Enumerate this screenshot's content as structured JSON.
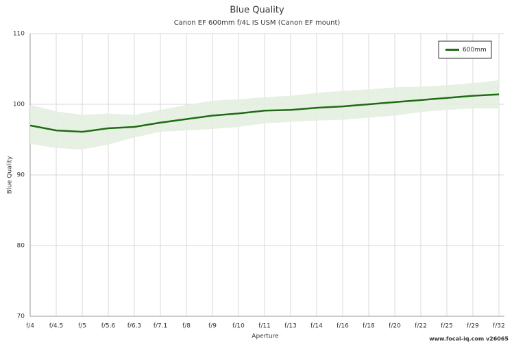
{
  "chart_data": {
    "type": "line",
    "title": "Blue Quality",
    "subtitle": "Canon EF 600mm f/4L IS USM (Canon EF mount)",
    "x_label": "Aperture",
    "y_label": "Blue Quality",
    "footer": "www.focal-iq.com  v26065",
    "categories": [
      "f/4",
      "f/4.5",
      "f/5",
      "f/5.6",
      "f/6.3",
      "f/7.1",
      "f/8",
      "f/9",
      "f/10",
      "f/11",
      "f/13",
      "f/14",
      "f/16",
      "f/18",
      "f/20",
      "f/22",
      "f/25",
      "f/29",
      "f/32"
    ],
    "series": [
      {
        "name": "600mm",
        "color": "#1e6b12",
        "values": [
          97.0,
          96.3,
          96.1,
          96.6,
          96.8,
          97.4,
          97.9,
          98.4,
          98.7,
          99.1,
          99.2,
          99.5,
          99.7,
          100.0,
          100.3,
          100.6,
          100.9,
          101.2,
          101.4
        ],
        "band_upper": [
          99.9,
          99.0,
          98.5,
          98.7,
          98.5,
          99.2,
          99.9,
          100.5,
          100.7,
          101.0,
          101.2,
          101.6,
          101.9,
          102.1,
          102.4,
          102.5,
          102.7,
          103.0,
          103.4
        ],
        "band_lower": [
          94.4,
          93.8,
          93.6,
          94.3,
          95.3,
          96.1,
          96.3,
          96.5,
          96.8,
          97.3,
          97.5,
          97.7,
          97.8,
          98.1,
          98.4,
          98.9,
          99.2,
          99.4,
          99.4
        ],
        "band_color": "#e3efe0"
      }
    ],
    "ylim": [
      70,
      110
    ],
    "yticks": [
      70,
      80,
      90,
      100,
      110
    ],
    "grid": true,
    "legend": "top-right"
  }
}
